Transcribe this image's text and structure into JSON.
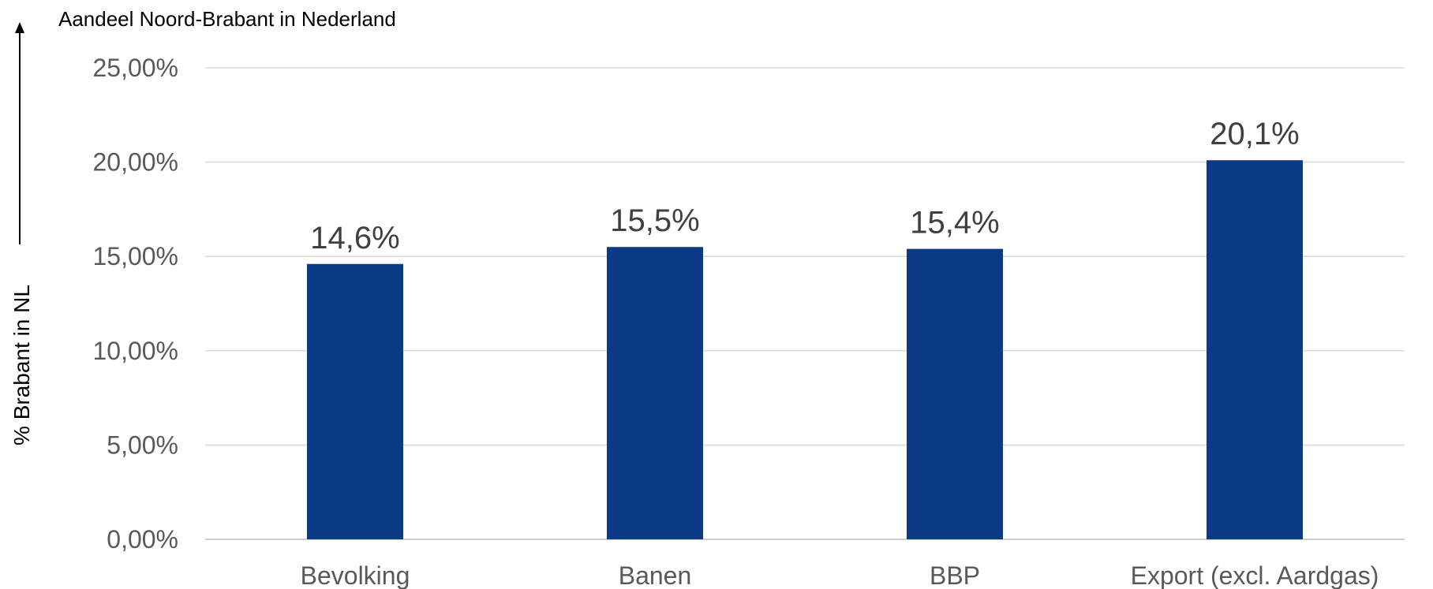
{
  "chart_data": {
    "type": "bar",
    "title": "Aandeel Noord-Brabant in Nederland",
    "ylabel": "% Brabant in NL",
    "xlabel": "",
    "categories": [
      "Bevolking",
      "Banen",
      "BBP",
      "Export (excl. Aardgas)"
    ],
    "values": [
      14.6,
      15.5,
      15.4,
      20.1
    ],
    "data_labels": [
      "14,6%",
      "15,5%",
      "15,4%",
      "20,1%"
    ],
    "ylim": [
      0,
      25
    ],
    "yticks": [
      0,
      5,
      10,
      15,
      20,
      25
    ],
    "ytick_labels": [
      "0,00%",
      "5,00%",
      "10,00%",
      "15,00%",
      "20,00%",
      "25,00%"
    ],
    "bar_color": "#0b3a86",
    "grid": true,
    "legend": "none"
  }
}
